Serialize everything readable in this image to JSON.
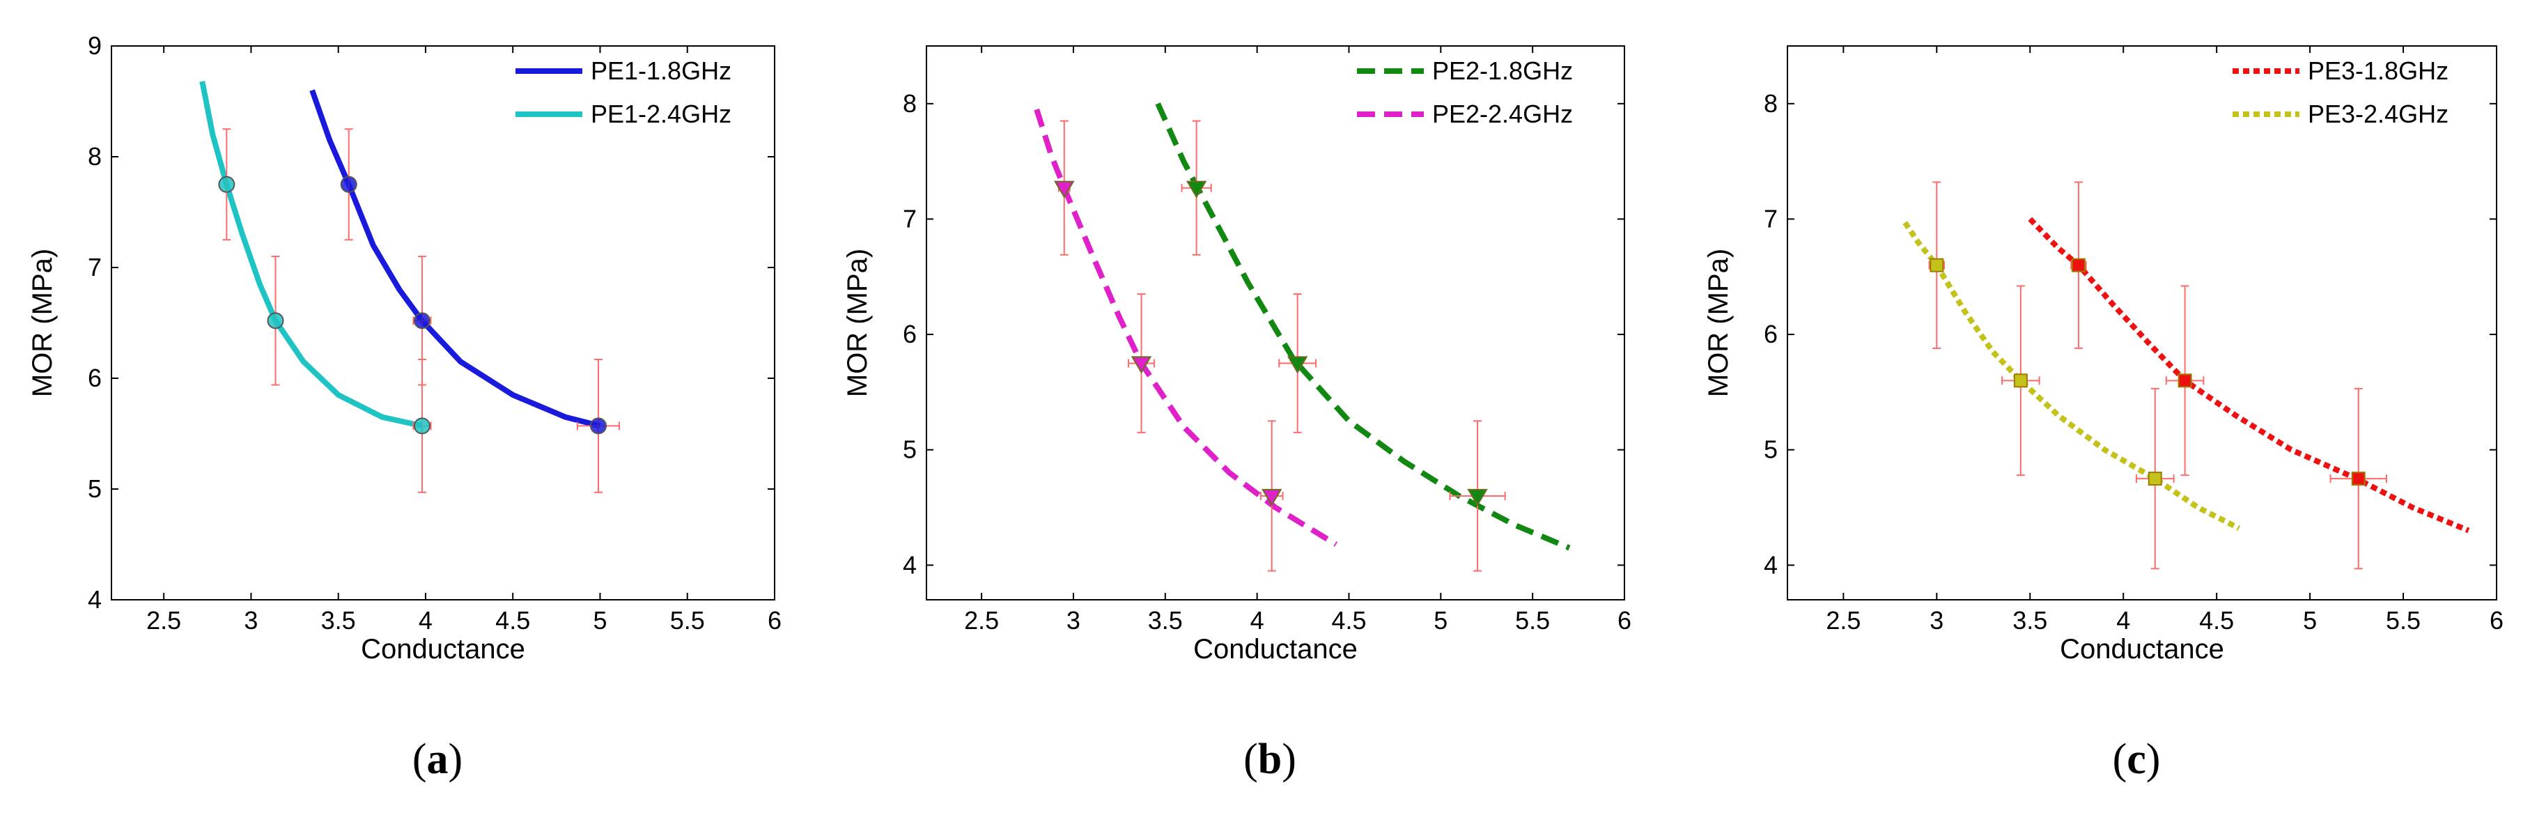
{
  "chart_data": [
    {
      "type": "line",
      "panel_label": "a",
      "xlabel": "Conductance",
      "ylabel": "MOR (MPa)",
      "xlim": [
        2.2,
        6
      ],
      "ylim": [
        4,
        9
      ],
      "xticks": [
        2.5,
        3,
        3.5,
        4,
        4.5,
        5,
        5.5,
        6
      ],
      "yticks": [
        4,
        5,
        6,
        7,
        8,
        9
      ],
      "legend_position": "top-right",
      "series": [
        {
          "name": "PE1-1.8GHz",
          "color": "#1a1adc",
          "line_style": "solid",
          "marker": "circle",
          "curve": {
            "x": [
              3.35,
              3.45,
              3.56,
              3.7,
              3.85,
              3.98,
              4.2,
              4.5,
              4.8,
              5.0
            ],
            "y": [
              8.6,
              8.15,
              7.75,
              7.2,
              6.8,
              6.52,
              6.15,
              5.85,
              5.65,
              5.57
            ]
          },
          "points": [
            {
              "x": 3.56,
              "y": 7.75,
              "xerr": 0.0,
              "yerr": 0.5
            },
            {
              "x": 3.98,
              "y": 6.52,
              "xerr": 0.05,
              "yerr": 0.58
            },
            {
              "x": 4.99,
              "y": 5.57,
              "xerr": 0.12,
              "yerr": 0.6
            }
          ]
        },
        {
          "name": "PE1-2.4GHz",
          "color": "#1ec4c4",
          "line_style": "solid",
          "marker": "circle",
          "curve": {
            "x": [
              2.72,
              2.78,
              2.86,
              2.95,
              3.05,
              3.14,
              3.3,
              3.5,
              3.75,
              3.98
            ],
            "y": [
              8.68,
              8.2,
              7.75,
              7.3,
              6.85,
              6.52,
              6.15,
              5.85,
              5.65,
              5.57
            ]
          },
          "points": [
            {
              "x": 2.86,
              "y": 7.75,
              "xerr": 0.0,
              "yerr": 0.5
            },
            {
              "x": 3.14,
              "y": 6.52,
              "xerr": 0.0,
              "yerr": 0.58
            },
            {
              "x": 3.98,
              "y": 5.57,
              "xerr": 0.05,
              "yerr": 0.6
            }
          ]
        }
      ]
    },
    {
      "type": "line",
      "panel_label": "b",
      "xlabel": "Conductance",
      "ylabel": "MOR (MPa)",
      "xlim": [
        2.2,
        6
      ],
      "ylim": [
        3.7,
        8.5
      ],
      "xticks": [
        2.5,
        3,
        3.5,
        4,
        4.5,
        5,
        5.5,
        6
      ],
      "yticks": [
        4,
        5,
        6,
        7,
        8
      ],
      "legend_position": "top-right",
      "series": [
        {
          "name": "PE2-1.8GHz",
          "color": "#118811",
          "line_style": "dashed",
          "marker": "triangle-down",
          "curve": {
            "x": [
              3.46,
              3.6,
              3.75,
              3.95,
              4.2,
              4.5,
              4.8,
              5.1,
              5.4,
              5.7
            ],
            "y": [
              8.0,
              7.5,
              7.05,
              6.45,
              5.78,
              5.25,
              4.9,
              4.6,
              4.35,
              4.15
            ]
          },
          "points": [
            {
              "x": 3.67,
              "y": 7.27,
              "xerr": 0.08,
              "yerr": 0.58
            },
            {
              "x": 4.22,
              "y": 5.75,
              "xerr": 0.1,
              "yerr": 0.6
            },
            {
              "x": 5.2,
              "y": 4.6,
              "xerr": 0.15,
              "yerr": 0.65
            }
          ]
        },
        {
          "name": "PE2-2.4GHz",
          "color": "#e020c8",
          "line_style": "dashed",
          "marker": "triangle-down",
          "curve": {
            "x": [
              2.8,
              2.88,
              2.95,
              3.1,
              3.25,
              3.37,
              3.6,
              3.85,
              4.1,
              4.43
            ],
            "y": [
              7.95,
              7.55,
              7.27,
              6.7,
              6.15,
              5.75,
              5.2,
              4.8,
              4.5,
              4.18
            ]
          },
          "points": [
            {
              "x": 2.95,
              "y": 7.27,
              "xerr": 0.03,
              "yerr": 0.58
            },
            {
              "x": 3.37,
              "y": 5.75,
              "xerr": 0.07,
              "yerr": 0.6
            },
            {
              "x": 4.08,
              "y": 4.6,
              "xerr": 0.06,
              "yerr": 0.65
            }
          ]
        }
      ]
    },
    {
      "type": "line",
      "panel_label": "c",
      "xlabel": "Conductance",
      "ylabel": "MOR (MPa)",
      "xlim": [
        2.2,
        6
      ],
      "ylim": [
        3.7,
        8.5
      ],
      "xticks": [
        2.5,
        3,
        3.5,
        4,
        4.5,
        5,
        5.5,
        6
      ],
      "yticks": [
        4,
        5,
        6,
        7,
        8
      ],
      "legend_position": "top-right",
      "series": [
        {
          "name": "PE3-1.8GHz",
          "color": "#ee1111",
          "line_style": "dotted",
          "marker": "square",
          "curve": {
            "x": [
              3.5,
              3.65,
              3.76,
              3.95,
              4.15,
              4.33,
              4.6,
              4.9,
              5.25,
              5.55,
              5.85
            ],
            "y": [
              7.0,
              6.75,
              6.6,
              6.25,
              5.9,
              5.6,
              5.3,
              5.0,
              4.75,
              4.5,
              4.3
            ]
          },
          "points": [
            {
              "x": 3.76,
              "y": 6.6,
              "xerr": 0.04,
              "yerr": 0.72
            },
            {
              "x": 4.33,
              "y": 5.6,
              "xerr": 0.1,
              "yerr": 0.82
            },
            {
              "x": 5.26,
              "y": 4.75,
              "xerr": 0.15,
              "yerr": 0.78
            }
          ]
        },
        {
          "name": "PE3-2.4GHz",
          "color": "#c2c21a",
          "line_style": "dotted",
          "marker": "square",
          "curve": {
            "x": [
              2.83,
              2.9,
              3.0,
              3.15,
              3.3,
              3.45,
              3.65,
              3.9,
              4.17,
              4.4,
              4.62
            ],
            "y": [
              6.97,
              6.8,
              6.6,
              6.2,
              5.85,
              5.6,
              5.3,
              5.0,
              4.75,
              4.5,
              4.32
            ]
          },
          "points": [
            {
              "x": 3.0,
              "y": 6.6,
              "xerr": 0.04,
              "yerr": 0.72
            },
            {
              "x": 3.45,
              "y": 5.6,
              "xerr": 0.1,
              "yerr": 0.82
            },
            {
              "x": 4.17,
              "y": 4.75,
              "xerr": 0.1,
              "yerr": 0.78
            }
          ]
        }
      ]
    }
  ]
}
